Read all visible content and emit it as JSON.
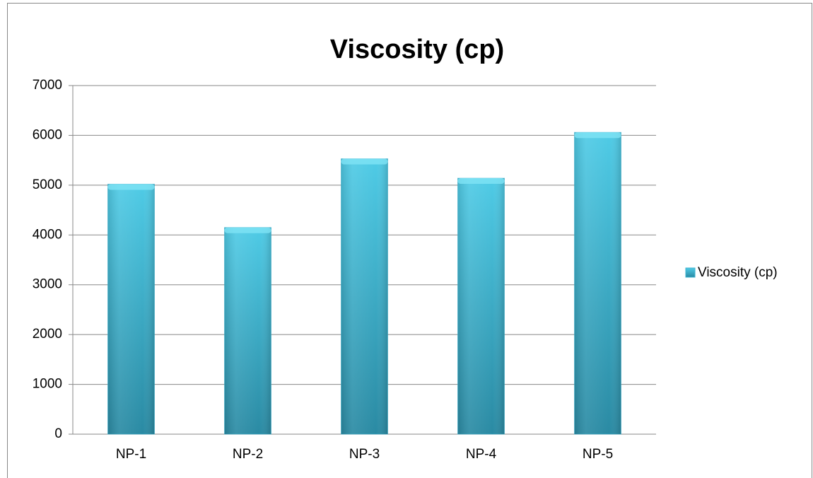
{
  "chart_data": {
    "type": "bar",
    "title": "Viscosity (cp)",
    "categories": [
      "NP-1",
      "NP-2",
      "NP-3",
      "NP-4",
      "NP-5"
    ],
    "series": [
      {
        "name": "Viscosity (cp)",
        "color": "#3bb3d0",
        "values": [
          5020,
          4150,
          5530,
          5140,
          6060
        ]
      }
    ],
    "ylim": [
      0,
      7000
    ],
    "yticks": [
      0,
      1000,
      2000,
      3000,
      4000,
      5000,
      6000,
      7000
    ],
    "grid": true,
    "legend": "right"
  }
}
